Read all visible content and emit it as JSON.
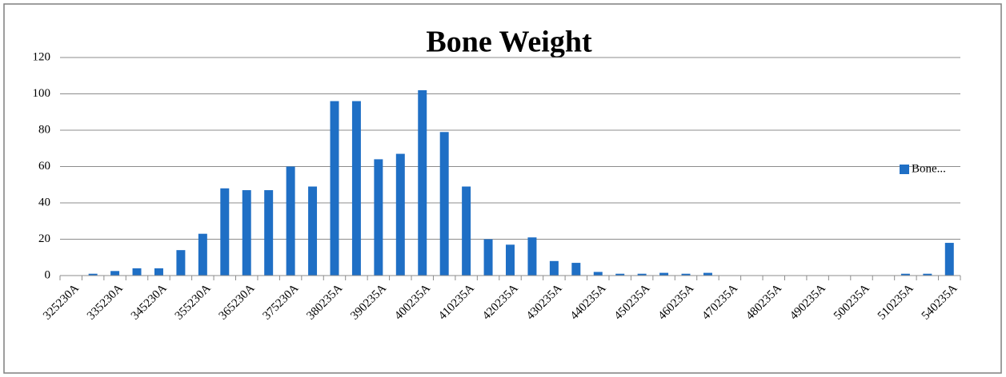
{
  "chart_data": {
    "type": "bar",
    "title": "Bone Weight",
    "categories": [
      "325230A",
      null,
      "335230A",
      null,
      "345230A",
      null,
      "355230A",
      null,
      "365230A",
      null,
      "375230A",
      null,
      "380235A",
      null,
      "390235A",
      null,
      "400235A",
      null,
      "410235A",
      null,
      "420235A",
      null,
      "430235A",
      null,
      "440235A",
      null,
      "450235A",
      null,
      "460235A",
      null,
      "470235A",
      null,
      "480235A",
      null,
      "490235A",
      null,
      "500235A",
      null,
      "510235A",
      null,
      "540235A"
    ],
    "series": [
      {
        "name": "Bone...",
        "color": "#1f6fc5",
        "values": [
          0,
          1,
          2.5,
          4,
          4,
          14,
          23,
          48,
          47,
          47,
          60,
          49,
          96,
          96,
          64,
          67,
          102,
          79,
          49,
          20,
          17,
          21,
          8,
          7,
          2,
          1,
          1,
          1.5,
          1,
          1.5,
          0,
          0,
          0,
          0,
          0,
          0,
          0,
          0,
          1,
          1,
          18
        ]
      }
    ],
    "ylim": [
      0,
      120
    ],
    "yticks": [
      0,
      20,
      40,
      60,
      80,
      100,
      120
    ],
    "grid": true,
    "legend": "right"
  }
}
